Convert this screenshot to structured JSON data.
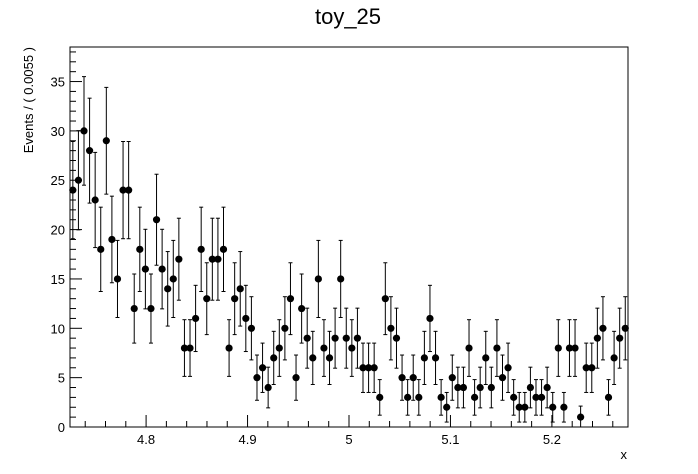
{
  "chart_data": {
    "type": "scatter",
    "title": "toy_25",
    "xlabel": "x",
    "ylabel": "Events / ( 0.0055 )",
    "xlim": [
      4.725,
      5.275
    ],
    "ylim": [
      0,
      38.5
    ],
    "x_ticks": [
      4.8,
      4.9,
      5.0,
      5.1,
      5.2
    ],
    "x_tick_labels": [
      "4.8",
      "4.9",
      "5",
      "5.1",
      "5.2"
    ],
    "y_ticks": [
      0,
      5,
      10,
      15,
      20,
      25,
      30,
      35
    ],
    "y_tick_labels": [
      "0",
      "5",
      "10",
      "15",
      "20",
      "25",
      "30",
      "35"
    ],
    "grid": false,
    "error_bars": "poisson",
    "series": [
      {
        "x": [
          4.7278,
          4.7333,
          4.7388,
          4.7443,
          4.7498,
          4.7553,
          4.7608,
          4.7663,
          4.7718,
          4.7773,
          4.7828,
          4.7883,
          4.7938,
          4.7993,
          4.8048,
          4.8103,
          4.8158,
          4.8213,
          4.8268,
          4.8323,
          4.8378,
          4.8433,
          4.8488,
          4.8543,
          4.8598,
          4.8653,
          4.8708,
          4.8763,
          4.8818,
          4.8873,
          4.8928,
          4.8983,
          4.9038,
          4.9093,
          4.9148,
          4.9203,
          4.9258,
          4.9313,
          4.9368,
          4.9423,
          4.9478,
          4.9533,
          4.9588,
          4.9643,
          4.9698,
          4.9753,
          4.9808,
          4.9863,
          4.9918,
          4.9973,
          5.0028,
          5.0083,
          5.0138,
          5.0193,
          5.0248,
          5.0303,
          5.0358,
          5.0413,
          5.0468,
          5.0523,
          5.0578,
          5.0633,
          5.0688,
          5.0743,
          5.0798,
          5.0853,
          5.0908,
          5.0963,
          5.1018,
          5.1073,
          5.1128,
          5.1183,
          5.1238,
          5.1293,
          5.1348,
          5.1403,
          5.1458,
          5.1513,
          5.1568,
          5.1623,
          5.1678,
          5.1733,
          5.1788,
          5.1843,
          5.1898,
          5.1953,
          5.2008,
          5.2063,
          5.2118,
          5.2173,
          5.2228,
          5.2283,
          5.2338,
          5.2393,
          5.2448,
          5.2503,
          5.2558,
          5.2613,
          5.2668,
          5.2723
        ],
        "y": [
          24,
          25,
          30,
          28,
          23,
          18,
          29,
          19,
          15,
          24,
          24,
          12,
          18,
          16,
          12,
          21,
          16,
          14,
          15,
          17,
          8,
          8,
          11,
          18,
          13,
          17,
          17,
          18,
          8,
          13,
          14,
          11,
          10,
          5,
          6,
          4,
          7,
          8,
          10,
          13,
          5,
          12,
          9,
          7,
          15,
          8,
          7,
          9,
          15,
          9,
          8,
          9,
          6,
          6,
          6,
          3,
          13,
          10,
          9,
          5,
          3,
          5,
          3,
          7,
          11,
          7,
          3,
          2,
          5,
          4,
          4,
          8,
          3,
          4,
          7,
          4,
          8,
          5,
          6,
          3,
          2,
          2,
          4,
          3,
          3,
          4,
          2,
          8,
          2,
          8,
          8,
          1,
          6,
          6,
          9,
          10,
          3,
          7,
          9,
          10
        ]
      }
    ]
  }
}
